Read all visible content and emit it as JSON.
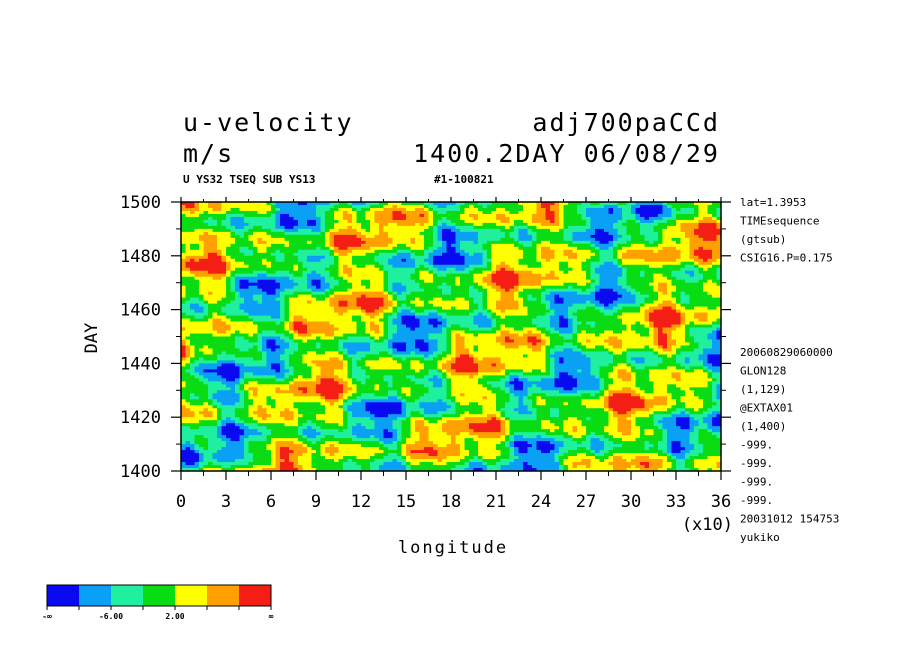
{
  "header": {
    "var_name": "u-velocity",
    "units": "m/s",
    "experiment": "adj700paCCd",
    "time_stamp": "1400.2DAY 06/08/29",
    "subtitle_left": "U YS32 TSEQ SUB YS13",
    "subtitle_right": "#1-100821"
  },
  "side_info": [
    "lat=1.3953",
    "TIMEsequence",
    "(gtsub)",
    "CSIG16.P=0.175"
  ],
  "side_info2": [
    "20060829060000",
    "GLON128",
    "(1,129)",
    "@EXTAX01",
    "(1,400)",
    "-999.",
    "-999.",
    "-999.",
    "-999.",
    "20031012 154753",
    "yukiko"
  ],
  "chart_data": {
    "type": "heatmap",
    "xlabel": "longitude",
    "x_scale_note": "(x10)",
    "ylabel": "DAY",
    "xlim": [
      0,
      36
    ],
    "ylim": [
      1400,
      1500
    ],
    "x_ticks": [
      "0",
      "3",
      "6",
      "9",
      "12",
      "15",
      "18",
      "21",
      "24",
      "27",
      "30",
      "33",
      "36"
    ],
    "y_ticks": [
      "1400",
      "1420",
      "1440",
      "1460",
      "1480",
      "1500"
    ],
    "colorbar": {
      "colors": [
        "#0a0af0",
        "#0aa0f5",
        "#1ef0a0",
        "#0adc14",
        "#ffff00",
        "#ffa000",
        "#f51e14"
      ],
      "labels": [
        "-∞",
        "-6.00",
        "2.00",
        "∞"
      ]
    }
  }
}
